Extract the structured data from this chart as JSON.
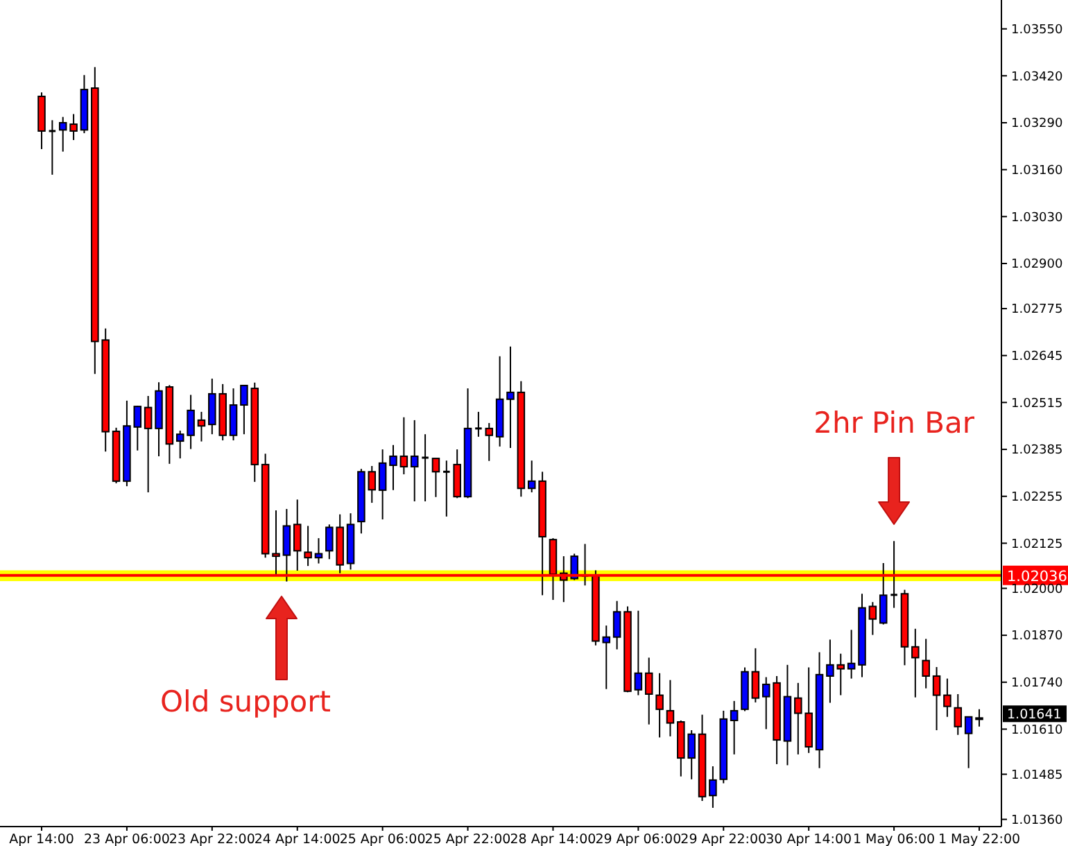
{
  "chart_data": {
    "type": "candlestick",
    "categories": [
      "Apr 14:00",
      null,
      null,
      null,
      null,
      null,
      null,
      null,
      "23 Apr 06:00",
      null,
      null,
      null,
      null,
      null,
      null,
      null,
      "23 Apr 22:00",
      null,
      null,
      null,
      null,
      null,
      null,
      null,
      "24 Apr 14:00",
      null,
      null,
      null,
      null,
      null,
      null,
      null,
      "25 Apr 06:00",
      null,
      null,
      null,
      null,
      null,
      null,
      null,
      "25 Apr 22:00",
      null,
      null,
      null,
      null,
      null,
      null,
      null,
      "28 Apr 14:00",
      null,
      null,
      null,
      null,
      null,
      null,
      null,
      "29 Apr 06:00",
      null,
      null,
      null,
      null,
      null,
      null,
      null,
      "29 Apr 22:00",
      null,
      null,
      null,
      null,
      null,
      null,
      null,
      "30 Apr 14:00",
      null,
      null,
      null,
      null,
      null,
      null,
      null,
      "1 May 06:00",
      null,
      null,
      null,
      null,
      null,
      null,
      null,
      "1 May 22:00"
    ],
    "ohlc": [
      [
        1.03363,
        1.03374,
        1.03217,
        1.03267
      ],
      [
        1.03267,
        1.03297,
        1.03146,
        1.03267
      ],
      [
        1.0327,
        1.03306,
        1.0321,
        1.0329
      ],
      [
        1.03286,
        1.03314,
        1.03242,
        1.03267
      ],
      [
        1.0327,
        1.03422,
        1.03261,
        1.03382
      ],
      [
        1.03386,
        1.03444,
        1.02594,
        1.02684
      ],
      [
        1.02688,
        1.0272,
        1.02379,
        1.02434
      ],
      [
        1.02435,
        1.02445,
        1.02291,
        1.02297
      ],
      [
        1.02297,
        1.0252,
        1.02283,
        1.0245
      ],
      [
        1.02447,
        1.02506,
        1.02382,
        1.02504
      ],
      [
        1.02501,
        1.02533,
        1.02266,
        1.02443
      ],
      [
        1.02443,
        1.02571,
        1.02366,
        1.02547
      ],
      [
        1.02558,
        1.02563,
        1.02345,
        1.024
      ],
      [
        1.02408,
        1.02437,
        1.0236,
        1.02427
      ],
      [
        1.02424,
        1.02536,
        1.02386,
        1.02493
      ],
      [
        1.02466,
        1.02489,
        1.02407,
        1.0245
      ],
      [
        1.02454,
        1.02581,
        1.02427,
        1.02539
      ],
      [
        1.02539,
        1.02566,
        1.0241,
        1.02424
      ],
      [
        1.02424,
        1.02554,
        1.0241,
        1.02508
      ],
      [
        1.02508,
        1.02563,
        1.02427,
        1.02562
      ],
      [
        1.02554,
        1.0257,
        1.02295,
        1.02343
      ],
      [
        1.02343,
        1.02373,
        1.02085,
        1.02096
      ],
      [
        1.02096,
        1.02216,
        1.02035,
        1.02089
      ],
      [
        1.02092,
        1.0222,
        1.02019,
        1.02173
      ],
      [
        1.02177,
        1.02246,
        1.02049,
        1.02104
      ],
      [
        1.021,
        1.02173,
        1.02062,
        1.02085
      ],
      [
        1.02085,
        1.02139,
        1.02069,
        1.02096
      ],
      [
        1.02104,
        1.02177,
        1.02081,
        1.02169
      ],
      [
        1.02169,
        1.02205,
        1.02042,
        1.02065
      ],
      [
        1.02069,
        1.02208,
        1.02052,
        1.02177
      ],
      [
        1.02185,
        1.02331,
        1.02152,
        1.02323
      ],
      [
        1.02323,
        1.02339,
        1.02237,
        1.02273
      ],
      [
        1.02272,
        1.02385,
        1.02191,
        1.02347
      ],
      [
        1.02341,
        1.02397,
        1.02272,
        1.02366
      ],
      [
        1.02366,
        1.02474,
        1.02316,
        1.02337
      ],
      [
        1.02337,
        1.02466,
        1.02241,
        1.02366
      ],
      [
        1.02362,
        1.02427,
        1.02241,
        1.02362
      ],
      [
        1.0236,
        1.0236,
        1.02253,
        1.02323
      ],
      [
        1.02323,
        1.02354,
        1.02199,
        1.02323
      ],
      [
        1.02343,
        1.02385,
        1.0225,
        1.02254
      ],
      [
        1.02254,
        1.02554,
        1.0225,
        1.02443
      ],
      [
        1.02443,
        1.02489,
        1.0242,
        1.02443
      ],
      [
        1.02443,
        1.02458,
        1.02353,
        1.02424
      ],
      [
        1.0242,
        1.02643,
        1.02393,
        1.02524
      ],
      [
        1.02524,
        1.0267,
        1.02389,
        1.02543
      ],
      [
        1.02543,
        1.02574,
        1.02254,
        1.02277
      ],
      [
        1.02277,
        1.02354,
        1.02266,
        1.02297
      ],
      [
        1.02297,
        1.02323,
        1.01981,
        1.02143
      ],
      [
        1.02135,
        1.02139,
        1.01968,
        1.02039
      ],
      [
        1.02042,
        1.02089,
        1.01962,
        1.02023
      ],
      [
        1.02027,
        1.02096,
        1.02023,
        1.02089
      ],
      [
        1.02035,
        1.02123,
        1.02008,
        1.02035
      ],
      [
        1.02035,
        1.0205,
        1.01842,
        1.01854
      ],
      [
        1.0185,
        1.01897,
        1.01721,
        1.01865
      ],
      [
        1.01865,
        1.01965,
        1.01831,
        1.01935
      ],
      [
        1.01935,
        1.0195,
        1.01712,
        1.01715
      ],
      [
        1.01719,
        1.01938,
        1.01704,
        1.01765
      ],
      [
        1.01765,
        1.01808,
        1.01623,
        1.01707
      ],
      [
        1.01704,
        1.01765,
        1.01587,
        1.01665
      ],
      [
        1.01661,
        1.01746,
        1.0159,
        1.01627
      ],
      [
        1.0163,
        1.01634,
        1.01479,
        1.0153
      ],
      [
        1.0153,
        1.01607,
        1.01471,
        1.01596
      ],
      [
        1.01596,
        1.0165,
        1.01411,
        1.01423
      ],
      [
        1.01426,
        1.01507,
        1.01392,
        1.01469
      ],
      [
        1.01471,
        1.01661,
        1.0146,
        1.01638
      ],
      [
        1.01634,
        1.01688,
        1.0154,
        1.01661
      ],
      [
        1.01665,
        1.01781,
        1.0166,
        1.01769
      ],
      [
        1.01769,
        1.01834,
        1.01684,
        1.01696
      ],
      [
        1.017,
        1.01754,
        1.0161,
        1.01734
      ],
      [
        1.01738,
        1.01757,
        1.01513,
        1.0158
      ],
      [
        1.01577,
        1.01788,
        1.0151,
        1.017
      ],
      [
        1.01696,
        1.01738,
        1.0154,
        1.01654
      ],
      [
        1.01654,
        1.01781,
        1.01544,
        1.01561
      ],
      [
        1.01553,
        1.01823,
        1.01502,
        1.01761
      ],
      [
        1.01757,
        1.01858,
        1.01683,
        1.01788
      ],
      [
        1.01788,
        1.01819,
        1.01704,
        1.01777
      ],
      [
        1.01777,
        1.01885,
        1.0175,
        1.01792
      ],
      [
        1.01788,
        1.01985,
        1.01754,
        1.01946
      ],
      [
        1.0195,
        1.01962,
        1.01871,
        1.01915
      ],
      [
        1.01904,
        1.0207,
        1.019,
        1.01981
      ],
      [
        1.01982,
        1.02131,
        1.01946,
        1.01982
      ],
      [
        1.01985,
        1.01996,
        1.01787,
        1.01838
      ],
      [
        1.01838,
        1.01888,
        1.01698,
        1.01808
      ],
      [
        1.018,
        1.0186,
        1.01723,
        1.01757
      ],
      [
        1.01757,
        1.01782,
        1.01607,
        1.01704
      ],
      [
        1.01704,
        1.0175,
        1.01644,
        1.01673
      ],
      [
        1.01669,
        1.01707,
        1.01594,
        1.01617
      ],
      [
        1.01598,
        1.01645,
        1.01502,
        1.01644
      ],
      [
        1.01637,
        1.01665,
        1.01617,
        1.01641
      ]
    ],
    "colors": [
      "#ff0000",
      "#000000",
      "#0000ff",
      "#ff0000",
      "#0000ff",
      "#ff0000",
      "#ff0000",
      "#ff0000",
      "#0000ff",
      "#0000ff",
      "#ff0000",
      "#0000ff",
      "#ff0000",
      "#0000ff",
      "#0000ff",
      "#ff0000",
      "#0000ff",
      "#ff0000",
      "#0000ff",
      "#0000ff",
      "#ff0000",
      "#ff0000",
      "#ff0000",
      "#0000ff",
      "#ff0000",
      "#ff0000",
      "#0000ff",
      "#0000ff",
      "#ff0000",
      "#0000ff",
      "#0000ff",
      "#ff0000",
      "#0000ff",
      "#0000ff",
      "#ff0000",
      "#0000ff",
      "#000000",
      "#ff0000",
      "#000000",
      "#ff0000",
      "#0000ff",
      "#000000",
      "#ff0000",
      "#0000ff",
      "#0000ff",
      "#ff0000",
      "#0000ff",
      "#ff0000",
      "#ff0000",
      "#ff0000",
      "#0000ff",
      "#000000",
      "#ff0000",
      "#0000ff",
      "#0000ff",
      "#ff0000",
      "#0000ff",
      "#ff0000",
      "#ff0000",
      "#ff0000",
      "#ff0000",
      "#0000ff",
      "#ff0000",
      "#0000ff",
      "#0000ff",
      "#0000ff",
      "#0000ff",
      "#ff0000",
      "#0000ff",
      "#ff0000",
      "#0000ff",
      "#ff0000",
      "#ff0000",
      "#0000ff",
      "#0000ff",
      "#ff0000",
      "#0000ff",
      "#0000ff",
      "#ff0000",
      "#0000ff",
      "#000000",
      "#ff0000",
      "#ff0000",
      "#ff0000",
      "#ff0000",
      "#ff0000",
      "#ff0000",
      "#0000ff",
      "#0000ff"
    ],
    "ylim": [
      1.0134,
      1.0363
    ],
    "yticks": [
      {
        "value": 1.0355,
        "label": "1.03550"
      },
      {
        "value": 1.0342,
        "label": "1.03420"
      },
      {
        "value": 1.0329,
        "label": "1.03290"
      },
      {
        "value": 1.0316,
        "label": "1.03160"
      },
      {
        "value": 1.0303,
        "label": "1.03030"
      },
      {
        "value": 1.029,
        "label": "1.02900"
      },
      {
        "value": 1.02775,
        "label": "1.02775"
      },
      {
        "value": 1.02645,
        "label": "1.02645"
      },
      {
        "value": 1.02515,
        "label": "1.02515"
      },
      {
        "value": 1.02385,
        "label": "1.02385"
      },
      {
        "value": 1.02255,
        "label": "1.02255"
      },
      {
        "value": 1.02125,
        "label": "1.02125"
      },
      {
        "value": 1.02,
        "label": "1.02000"
      },
      {
        "value": 1.0187,
        "label": "1.01870"
      },
      {
        "value": 1.0174,
        "label": "1.01740"
      },
      {
        "value": 1.0161,
        "label": "1.01610"
      },
      {
        "value": 1.01485,
        "label": "1.01485"
      },
      {
        "value": 1.0136,
        "label": "1.01360"
      }
    ],
    "ref_lines": [
      {
        "axis": "y",
        "value": 1.02036,
        "label": "1.02036",
        "color": "#ff0000"
      }
    ],
    "bands": [
      {
        "axis": "y",
        "from": 1.0202,
        "to": 1.0205,
        "color": "#ffff00"
      }
    ],
    "annotations": [
      "2hr Pin Bar",
      "Old support",
      "1.01641"
    ]
  }
}
